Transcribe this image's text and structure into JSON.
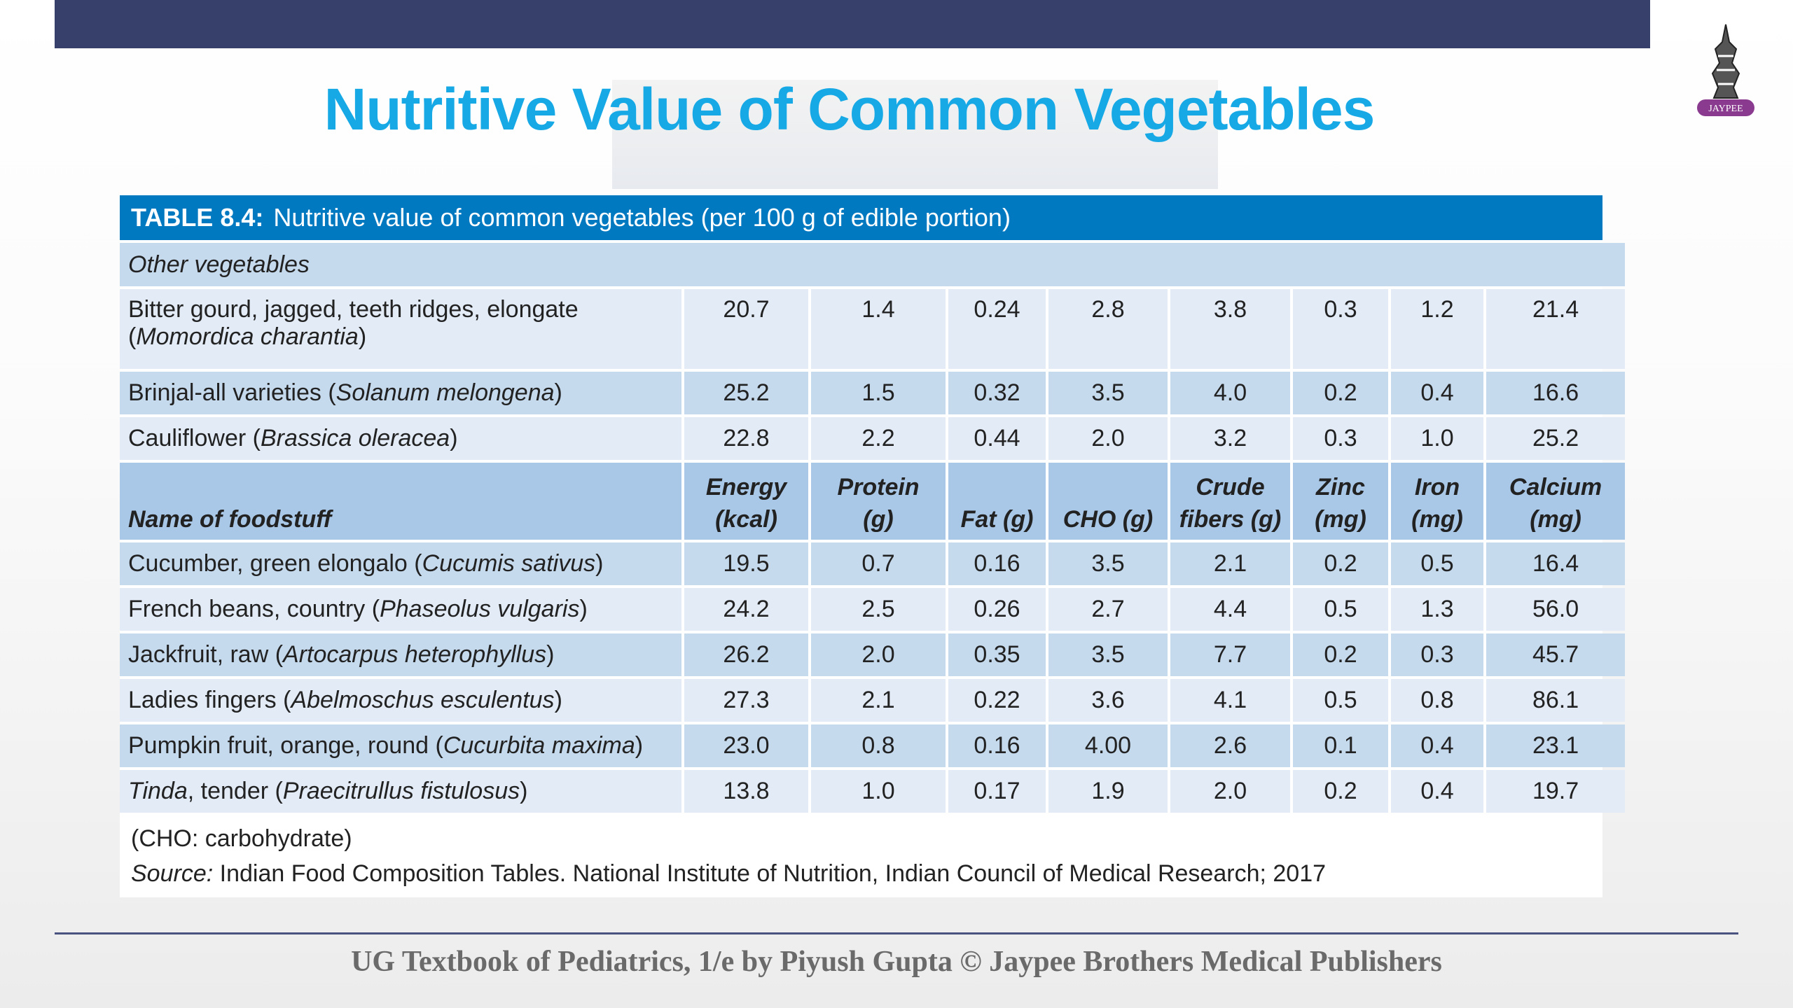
{
  "slide": {
    "title": "Nutritive Value of Common Vegetables",
    "logo_text": "JAYPEE",
    "footer": "UG Textbook of Pediatrics, 1/e by Piyush Gupta © Jaypee Brothers Medical Publishers",
    "colors": {
      "top_bar": "#373f6b",
      "title": "#16a9e6",
      "caption_bar": "#0079c1",
      "row_dark": "#c6daee",
      "row_light": "#e2ebf6",
      "header": "#a9c8e8"
    }
  },
  "table": {
    "caption_label": "TABLE 8.4:",
    "caption_text": "Nutritive value of common vegetables (per 100 g of edible portion)",
    "section_label": "Other vegetables",
    "columns": [
      "Name of foodstuff",
      "Energy (kcal)",
      "Protein (g)",
      "Fat (g)",
      "CHO (g)",
      "Crude fibers (g)",
      "Zinc (mg)",
      "Iron (mg)",
      "Calcium (mg)"
    ],
    "rows_before_header": [
      {
        "lead_italic": "",
        "common": "Bitter gourd, jagged, teeth ridges, elongate",
        "scientific": "Momordica charantia",
        "values": [
          "20.7",
          "1.4",
          "0.24",
          "2.8",
          "3.8",
          "0.3",
          "1.2",
          "21.4"
        ]
      },
      {
        "lead_italic": "",
        "common": "Brinjal-all varieties",
        "scientific": "Solanum melongena",
        "values": [
          "25.2",
          "1.5",
          "0.32",
          "3.5",
          "4.0",
          "0.2",
          "0.4",
          "16.6"
        ]
      },
      {
        "lead_italic": "",
        "common": "Cauliflower",
        "scientific": "Brassica oleracea",
        "values": [
          "22.8",
          "2.2",
          "0.44",
          "2.0",
          "3.2",
          "0.3",
          "1.0",
          "25.2"
        ]
      }
    ],
    "rows_after_header": [
      {
        "lead_italic": "",
        "common": "Cucumber, green elongalo",
        "scientific": "Cucumis sativus",
        "values": [
          "19.5",
          "0.7",
          "0.16",
          "3.5",
          "2.1",
          "0.2",
          "0.5",
          "16.4"
        ]
      },
      {
        "lead_italic": "",
        "common": "French beans, country",
        "scientific": "Phaseolus vulgaris",
        "values": [
          "24.2",
          "2.5",
          "0.26",
          "2.7",
          "4.4",
          "0.5",
          "1.3",
          "56.0"
        ]
      },
      {
        "lead_italic": "",
        "common": "Jackfruit, raw",
        "scientific": "Artocarpus heterophyllus",
        "values": [
          "26.2",
          "2.0",
          "0.35",
          "3.5",
          "7.7",
          "0.2",
          "0.3",
          "45.7"
        ]
      },
      {
        "lead_italic": "",
        "common": "Ladies fingers",
        "scientific": "Abelmoschus esculentus",
        "values": [
          "27.3",
          "2.1",
          "0.22",
          "3.6",
          "4.1",
          "0.5",
          "0.8",
          "86.1"
        ]
      },
      {
        "lead_italic": "",
        "common": "Pumpkin fruit, orange, round",
        "scientific": "Cucurbita maxima",
        "values": [
          "23.0",
          "0.8",
          "0.16",
          "4.00",
          "2.6",
          "0.1",
          "0.4",
          "23.1"
        ]
      },
      {
        "lead_italic": "Tinda",
        "common": ", tender",
        "scientific": "Praecitrullus fistulosus",
        "values": [
          "13.8",
          "1.0",
          "0.17",
          "1.9",
          "2.0",
          "0.2",
          "0.4",
          "19.7"
        ]
      }
    ],
    "note": "(CHO: carbohydrate)",
    "source_label": "Source:",
    "source_text": "Indian Food Composition Tables. National Institute of Nutrition, Indian Council of Medical Research; 2017"
  }
}
